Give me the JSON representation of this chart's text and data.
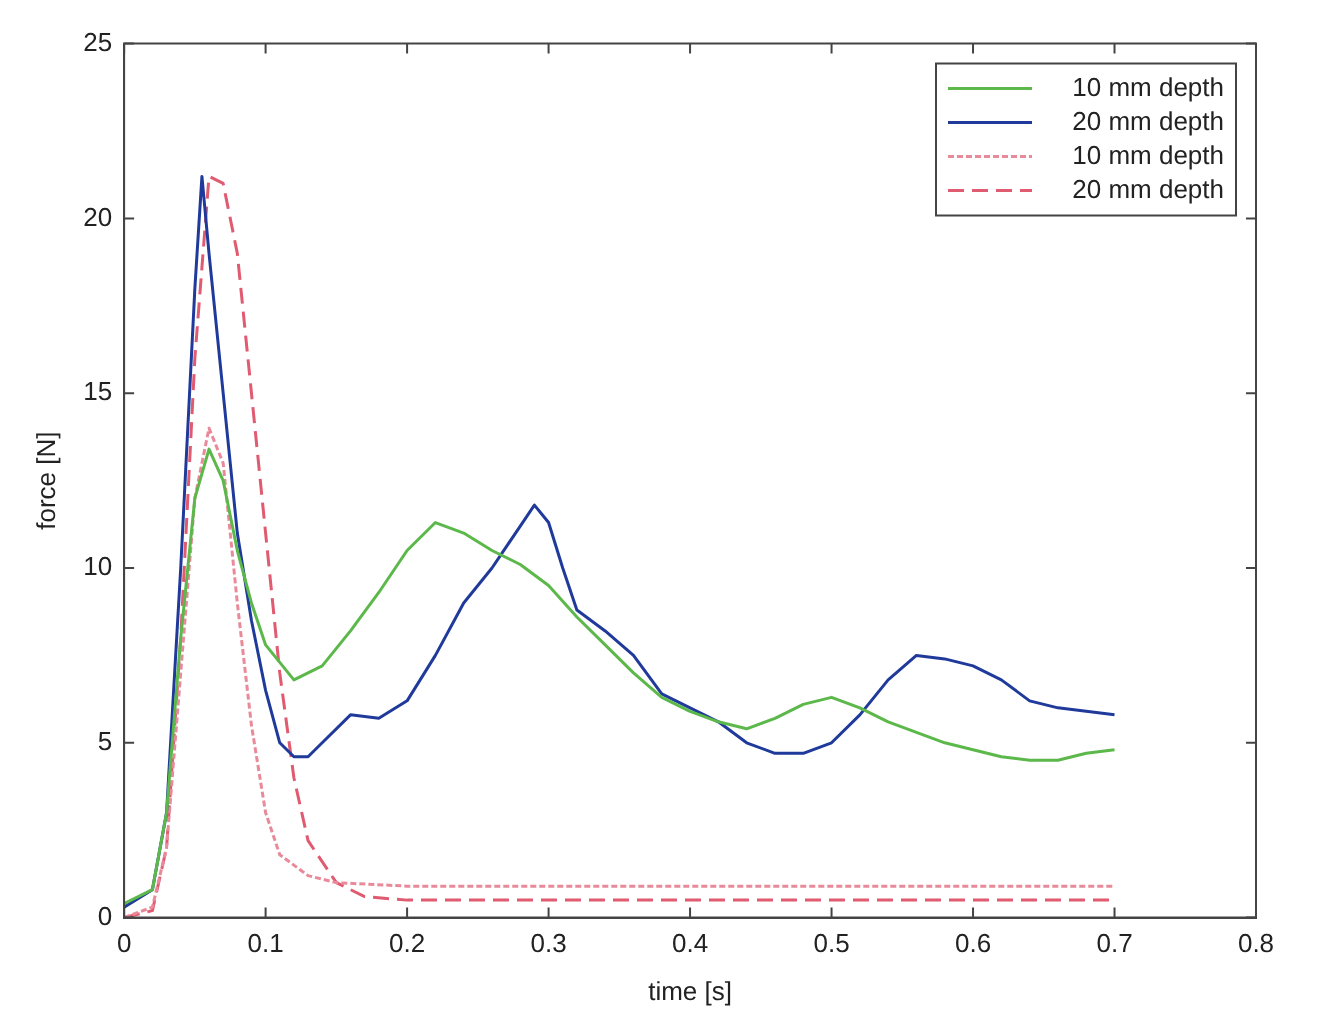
{
  "chart_data": {
    "type": "line",
    "xlabel": "time [s]",
    "ylabel": "force [N]",
    "xlim": [
      0,
      0.8
    ],
    "ylim": [
      0,
      25
    ],
    "xticks": [
      0,
      0.1,
      0.2,
      0.3,
      0.4,
      0.5,
      0.6,
      0.7,
      0.8
    ],
    "yticks": [
      0,
      5,
      10,
      15,
      20,
      25
    ],
    "grid": false,
    "legend": "top right",
    "marker": "none",
    "series": [
      {
        "name": "10 mm depth",
        "color": "#5cb84a",
        "line_style": "solid",
        "x": [
          0,
          0.02,
          0.03,
          0.04,
          0.05,
          0.06,
          0.07,
          0.08,
          0.09,
          0.1,
          0.12,
          0.14,
          0.16,
          0.18,
          0.2,
          0.22,
          0.24,
          0.26,
          0.28,
          0.3,
          0.32,
          0.34,
          0.36,
          0.38,
          0.4,
          0.42,
          0.44,
          0.46,
          0.48,
          0.5,
          0.52,
          0.54,
          0.56,
          0.58,
          0.6,
          0.62,
          0.64,
          0.66,
          0.68,
          0.7
        ],
        "values": [
          0.4,
          0.8,
          3,
          8,
          12,
          13.4,
          12.5,
          10.5,
          9,
          7.8,
          6.8,
          7.2,
          8.2,
          9.3,
          10.5,
          11.3,
          11,
          10.5,
          10.1,
          9.5,
          8.6,
          7.8,
          7,
          6.3,
          5.9,
          5.6,
          5.4,
          5.7,
          6.1,
          6.3,
          6,
          5.6,
          5.3,
          5,
          4.8,
          4.6,
          4.5,
          4.5,
          4.7,
          4.8
        ]
      },
      {
        "name": "20 mm depth",
        "color": "#1f3a9a",
        "line_style": "solid",
        "x": [
          0,
          0.02,
          0.03,
          0.04,
          0.05,
          0.055,
          0.06,
          0.07,
          0.08,
          0.09,
          0.1,
          0.11,
          0.12,
          0.13,
          0.14,
          0.16,
          0.18,
          0.2,
          0.22,
          0.24,
          0.26,
          0.28,
          0.29,
          0.3,
          0.31,
          0.32,
          0.34,
          0.36,
          0.38,
          0.4,
          0.42,
          0.44,
          0.46,
          0.48,
          0.5,
          0.52,
          0.54,
          0.56,
          0.58,
          0.6,
          0.62,
          0.64,
          0.66,
          0.68,
          0.7
        ],
        "values": [
          0.3,
          0.8,
          3,
          10,
          18,
          21.2,
          19,
          15,
          11,
          8.5,
          6.5,
          5,
          4.6,
          4.6,
          5,
          5.8,
          5.7,
          6.2,
          7.5,
          9,
          10,
          11.2,
          11.8,
          11.3,
          10,
          8.8,
          8.2,
          7.5,
          6.4,
          6,
          5.6,
          5,
          4.7,
          4.7,
          5,
          5.8,
          6.8,
          7.5,
          7.4,
          7.2,
          6.8,
          6.2,
          6,
          5.9,
          5.8
        ]
      },
      {
        "name": "10 mm depth",
        "color": "#e88a9a",
        "line_style": "dotted",
        "x": [
          0,
          0.02,
          0.03,
          0.04,
          0.05,
          0.06,
          0.07,
          0.08,
          0.09,
          0.1,
          0.11,
          0.13,
          0.15,
          0.2,
          0.3,
          0.7
        ],
        "values": [
          0,
          0.3,
          2,
          7,
          12,
          14,
          13,
          9,
          5.5,
          3,
          1.8,
          1.2,
          1,
          0.9,
          0.9,
          0.9
        ]
      },
      {
        "name": "20 mm depth",
        "color": "#e05a70",
        "line_style": "dashed",
        "x": [
          0,
          0.02,
          0.03,
          0.04,
          0.05,
          0.06,
          0.07,
          0.08,
          0.09,
          0.1,
          0.11,
          0.12,
          0.13,
          0.15,
          0.17,
          0.2,
          0.7
        ],
        "values": [
          0,
          0.2,
          2,
          8,
          16,
          21.2,
          21,
          19,
          15,
          11,
          7,
          4,
          2.2,
          1,
          0.6,
          0.5,
          0.5
        ]
      }
    ]
  }
}
